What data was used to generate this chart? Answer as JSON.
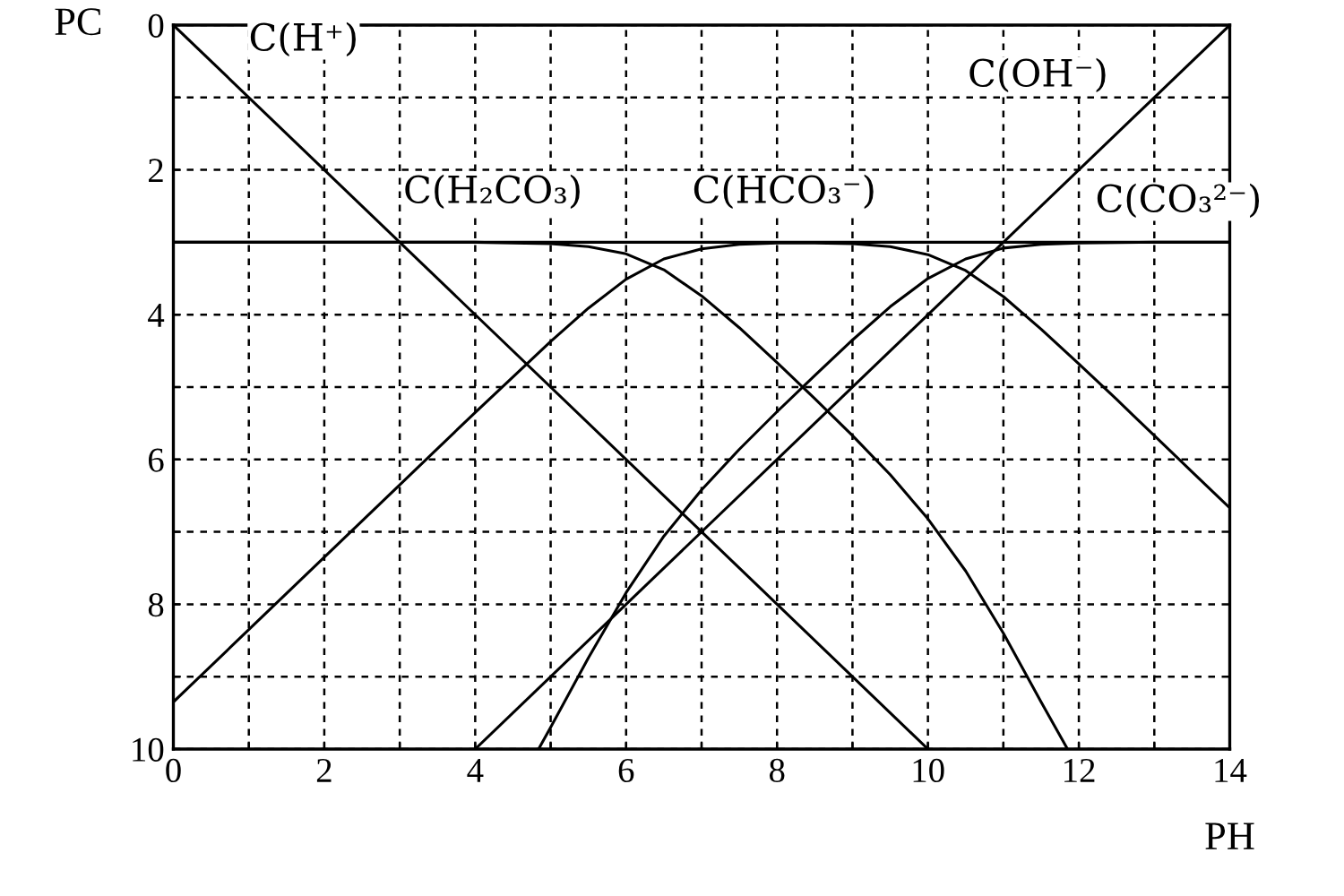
{
  "chart_data": {
    "type": "line",
    "xlabel": "PH",
    "ylabel": "PC",
    "xlim": [
      0,
      14
    ],
    "ylim": [
      10,
      0
    ],
    "xticks": [
      0,
      {
        "value": 1,
        "label": null
      },
      2,
      {
        "value": 3,
        "label": null
      },
      4,
      {
        "value": 5,
        "label": null
      },
      6,
      {
        "value": 7,
        "label": null
      },
      8,
      {
        "value": 9,
        "label": null
      },
      10,
      {
        "value": 11,
        "label": null
      },
      12,
      {
        "value": 13,
        "label": null
      },
      14
    ],
    "yticks": [
      0,
      {
        "value": 1,
        "label": null
      },
      2,
      {
        "value": 3,
        "label": null
      },
      4,
      {
        "value": 5,
        "label": null
      },
      6,
      {
        "value": 7,
        "label": null
      },
      8,
      {
        "value": 9,
        "label": null
      },
      10
    ],
    "grid": true,
    "line_style": "solid",
    "marker": "none",
    "legend": false,
    "series": [
      {
        "color": "#000000",
        "x": [
          0,
          10
        ],
        "values": [
          0,
          10
        ]
      },
      {
        "color": "#000000",
        "x": [
          4,
          14
        ],
        "values": [
          10,
          0
        ]
      },
      {
        "color": "#000000",
        "x": [
          0,
          1,
          2,
          3,
          4,
          4.5,
          5,
          5.5,
          6,
          6.5,
          7,
          7.5,
          8,
          8.5,
          9,
          9.5,
          10,
          10.5,
          11,
          11.5,
          11.85
        ],
        "values": [
          3,
          3,
          3,
          3,
          3,
          3.01,
          3.02,
          3.06,
          3.16,
          3.38,
          3.74,
          4.18,
          4.66,
          5.16,
          5.67,
          6.21,
          6.82,
          7.54,
          8.4,
          9.35,
          10
        ]
      },
      {
        "color": "#000000",
        "x": [
          0,
          1,
          2,
          3,
          4,
          5,
          5.5,
          6,
          6.5,
          7,
          7.5,
          8,
          8.5,
          9,
          9.5,
          10,
          10.5,
          11,
          11.5,
          12,
          12.5,
          13,
          13.5,
          14
        ],
        "values": [
          9.35,
          8.35,
          7.35,
          6.35,
          5.35,
          4.37,
          3.91,
          3.51,
          3.23,
          3.09,
          3.03,
          3.01,
          3.01,
          3.02,
          3.06,
          3.17,
          3.39,
          3.75,
          4.2,
          4.68,
          5.17,
          5.67,
          6.17,
          6.67
        ]
      },
      {
        "color": "#000000",
        "x": [
          4.84,
          5,
          5.5,
          6,
          6.5,
          7,
          7.5,
          8,
          8.5,
          9,
          9.5,
          10,
          10.5,
          11,
          11.5,
          12,
          13,
          14
        ],
        "values": [
          10,
          9.7,
          8.74,
          7.84,
          7.06,
          6.42,
          5.86,
          5.34,
          4.84,
          4.35,
          3.89,
          3.5,
          3.23,
          3.08,
          3.03,
          3.01,
          3,
          3
        ]
      }
    ],
    "ref_lines": [
      {
        "axis": "y",
        "value": 3,
        "color": "#000000"
      }
    ],
    "annotations": [
      "C(H⁺)",
      "C(OH⁻)",
      "C(H₂CO₃)",
      "C(HCO₃⁻)",
      "C(CO₃²⁻)"
    ]
  }
}
